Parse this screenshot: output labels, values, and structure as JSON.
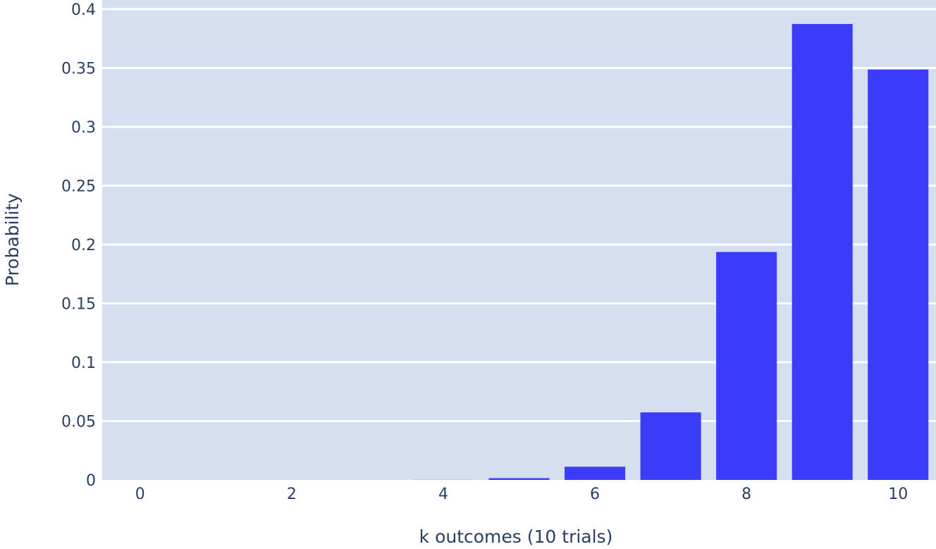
{
  "chart_data": {
    "type": "bar",
    "x": [
      0,
      1,
      2,
      3,
      4,
      5,
      6,
      7,
      8,
      9,
      10
    ],
    "values": [
      0.0,
      0.0,
      0.0,
      0.0,
      0.0001,
      0.0015,
      0.0112,
      0.0574,
      0.1937,
      0.3874,
      0.3487
    ],
    "xlabel": "k outcomes (10 trials)",
    "ylabel": "Probability",
    "xticks": [
      "0",
      "2",
      "4",
      "6",
      "8",
      "10"
    ],
    "yticks": [
      "0",
      "0.05",
      "0.1",
      "0.15",
      "0.2",
      "0.25",
      "0.3",
      "0.35",
      "0.4"
    ],
    "ylim": [
      0,
      0.4
    ],
    "xlim": [
      -0.5,
      10.5
    ],
    "grid": true,
    "colors": {
      "bar": "#3a3cfa",
      "plot_bg": "#d5dff0",
      "grid": "#ffffff",
      "text": "#2a3f5f"
    }
  }
}
